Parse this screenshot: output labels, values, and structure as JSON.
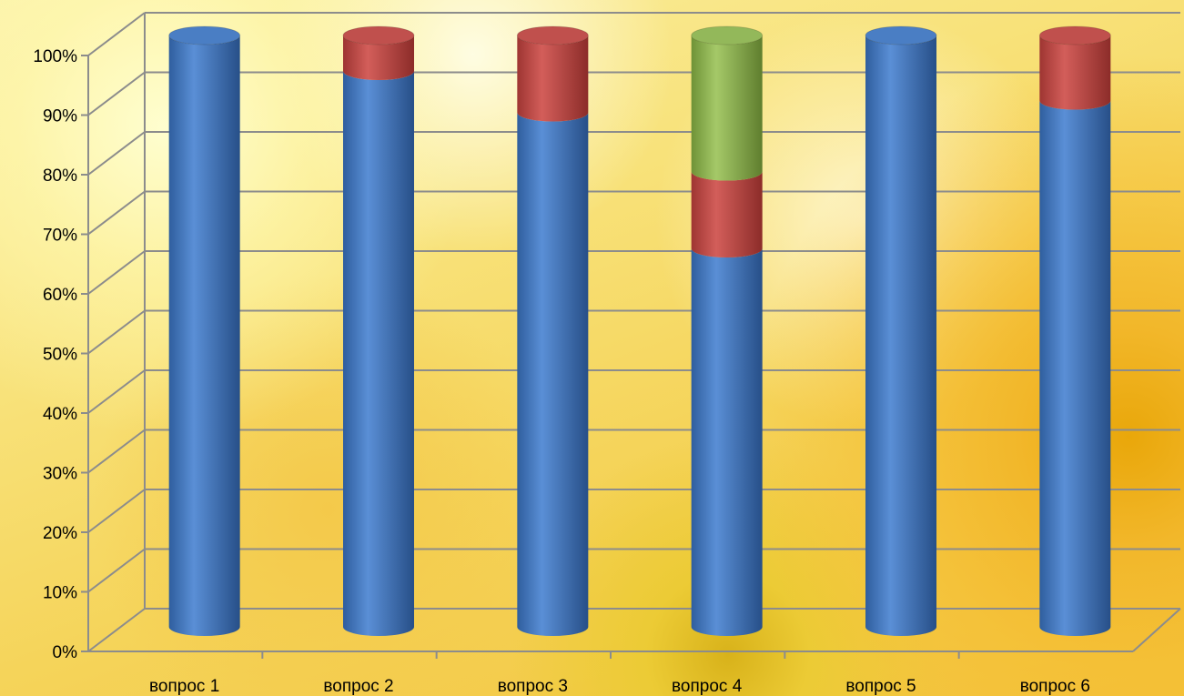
{
  "chart_data": {
    "type": "bar",
    "stacked": true,
    "style": "3d-cylinder",
    "categories": [
      "вопрос 1",
      "вопрос 2",
      "вопрос 3",
      "вопрос 4",
      "вопрос 5",
      "вопрос 6"
    ],
    "series": [
      {
        "color": "#4a7ec4",
        "values": [
          100,
          94,
          87,
          64,
          100,
          89
        ]
      },
      {
        "color": "#c0504d",
        "values": [
          0,
          6,
          13,
          13,
          0,
          11
        ]
      },
      {
        "color": "#93b85a",
        "values": [
          0,
          0,
          0,
          23,
          0,
          0
        ]
      }
    ],
    "y_ticks": [
      "0%",
      "10%",
      "20%",
      "30%",
      "40%",
      "50%",
      "60%",
      "70%",
      "80%",
      "90%",
      "100%"
    ],
    "ylim": [
      0,
      100
    ],
    "grid": true,
    "legend": "none"
  }
}
